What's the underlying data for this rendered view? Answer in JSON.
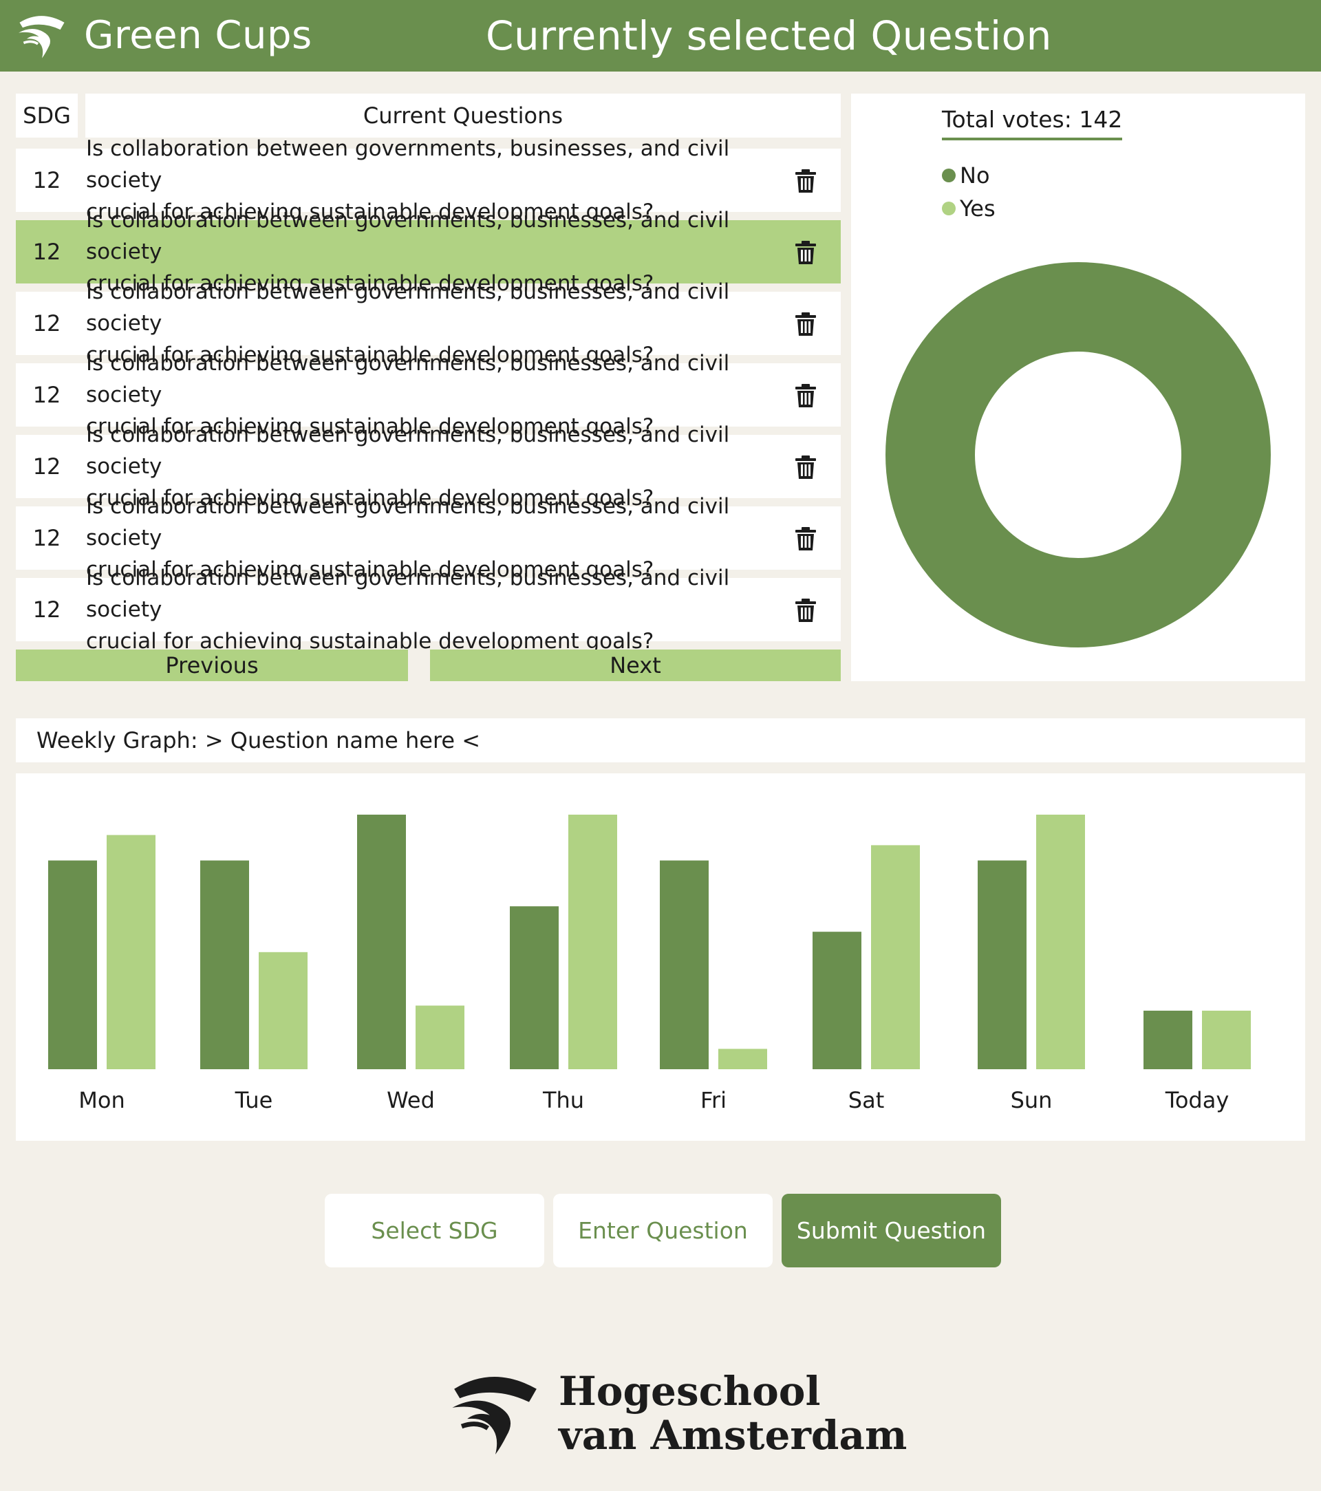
{
  "header": {
    "brand": "Green Cups",
    "title": "Currently selected Question"
  },
  "table": {
    "sdg_header": "SDG",
    "questions_header": "Current Questions",
    "rows": [
      {
        "sdg": "12",
        "line1": "Is collaboration between governments, businesses, and civil society",
        "line2": "crucial for achieving sustainable development goals?",
        "selected": false
      },
      {
        "sdg": "12",
        "line1": "Is collaboration between governments, businesses, and civil society",
        "line2": "crucial for achieving sustainable development goals?",
        "selected": true
      },
      {
        "sdg": "12",
        "line1": "Is collaboration between governments, businesses, and civil society",
        "line2": "crucial for achieving sustainable development goals?",
        "selected": false
      },
      {
        "sdg": "12",
        "line1": "Is collaboration between governments, businesses, and civil society",
        "line2": "crucial for achieving sustainable development goals?",
        "selected": false
      },
      {
        "sdg": "12",
        "line1": "Is collaboration between governments, businesses, and civil society",
        "line2": "crucial for achieving sustainable development goals?",
        "selected": false
      },
      {
        "sdg": "12",
        "line1": "Is collaboration between governments, businesses, and civil society",
        "line2": "crucial for achieving sustainable development goals?",
        "selected": false
      },
      {
        "sdg": "12",
        "line1": "Is collaboration between governments, businesses, and civil society",
        "line2": "crucial for achieving sustainable development goals?",
        "selected": false
      }
    ],
    "previous_label": "Previous",
    "next_label": "Next"
  },
  "votes": {
    "total_label": "Total votes: 142",
    "legend": [
      "No",
      "Yes"
    ]
  },
  "weekly": {
    "title": "Weekly Graph: > Question name here <"
  },
  "form": {
    "sdg_placeholder": "Select SDG",
    "question_placeholder": "Enter Question",
    "submit_label": "Submit Question"
  },
  "footer": {
    "line1": "Hogeschool",
    "line2": "van Amsterdam"
  },
  "colors": {
    "dark_green": "#6a8f4e",
    "light_green": "#b0d283",
    "background": "#f3f0e9"
  },
  "icons": {
    "trash": "trash-icon",
    "logo": "hva-logo-icon"
  },
  "chart_data": [
    {
      "type": "pie",
      "title": "",
      "categories": [
        "No",
        "Yes"
      ],
      "values": [
        142,
        0
      ]
    },
    {
      "type": "bar",
      "title": "",
      "categories": [
        "Mon",
        "Tue",
        "Wed",
        "Thu",
        "Fri",
        "Sat",
        "Sun",
        "Today"
      ],
      "series": [
        {
          "name": "No",
          "values": [
            82,
            82,
            100,
            64,
            82,
            54,
            82,
            23
          ]
        },
        {
          "name": "Yes",
          "values": [
            92,
            46,
            25,
            100,
            8,
            88,
            100,
            23
          ]
        }
      ],
      "ylim": [
        0,
        100
      ],
      "legend": "none",
      "grid": false
    }
  ]
}
